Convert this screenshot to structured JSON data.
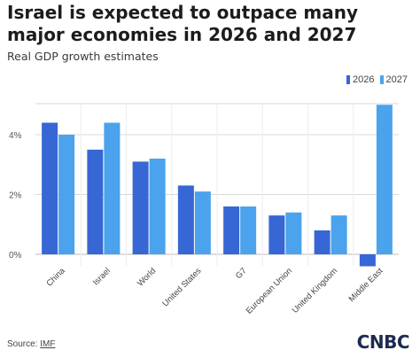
{
  "title": "Israel is expected to outpace many major economies in 2026 and 2027",
  "subtitle": "Real GDP growth estimates",
  "source": {
    "label": "Source: ",
    "link": "IMF"
  },
  "logo": "CNBC",
  "colors": {
    "series_2026": "#3667d4",
    "series_2027": "#4aa3ec",
    "grid": "#d9d9d9",
    "zero": "#bdbdbd"
  },
  "chart_data": {
    "type": "bar",
    "categories": [
      "China",
      "Israel",
      "World",
      "United States",
      "G7",
      "European Union",
      "United Kingdom",
      "Middle East"
    ],
    "series": [
      {
        "name": "2026",
        "values": [
          4.4,
          3.5,
          3.1,
          2.3,
          1.6,
          1.3,
          0.8,
          -0.4
        ]
      },
      {
        "name": "2027",
        "values": [
          4.0,
          4.4,
          3.2,
          2.1,
          1.6,
          1.4,
          1.3,
          5.0
        ]
      }
    ],
    "yticks": [
      "0%",
      "2%",
      "4%"
    ],
    "ytick_values": [
      0,
      2,
      4
    ],
    "ylim": [
      -0.5,
      5.2
    ],
    "grid": true,
    "legend_position": "top-right",
    "title": "Israel is expected to outpace many major economies in 2026 and 2027",
    "subtitle": "Real GDP growth estimates"
  }
}
